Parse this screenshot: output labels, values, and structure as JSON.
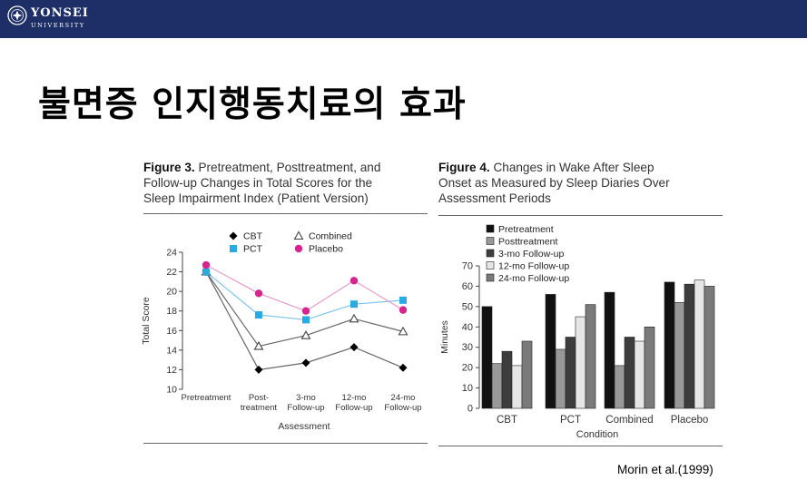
{
  "header": {
    "logo_name": "YONSEI",
    "logo_sub": "UNIVERSITY",
    "colors": {
      "bar": "#1d2f66",
      "text": "#ffffff"
    }
  },
  "slide_title": "불면증 인지행동치료의 효과",
  "citation": "Morin et al.(1999)",
  "figure3": {
    "label": "Figure 3.",
    "caption_lines": [
      "Pretreatment, Posttreatment, and",
      "Follow-up Changes in Total Scores for the",
      "Sleep Impairment Index (Patient Version)"
    ]
  },
  "figure4": {
    "label": "Figure 4.",
    "caption_lines": [
      "Changes in Wake After Sleep",
      "Onset as Measured by Sleep Diaries Over",
      "Assessment Periods"
    ]
  },
  "chart_data": [
    {
      "type": "line",
      "xlabel": "Assessment",
      "ylabel": "Total Score",
      "categories": [
        [
          "Pretreatment"
        ],
        [
          "Post-",
          "treatment"
        ],
        [
          "3-mo",
          "Follow-up"
        ],
        [
          "12-mo",
          "Follow-up"
        ],
        [
          "24-mo",
          "Follow-up"
        ]
      ],
      "ylim": [
        10,
        24
      ],
      "yticks": [
        10,
        12,
        14,
        16,
        18,
        20,
        22,
        24
      ],
      "legend_placement": "top",
      "series": [
        {
          "name": "CBT",
          "marker": "diamond",
          "color": "#666666",
          "marker_color": "#000000",
          "values": [
            22,
            12,
            12.7,
            14.3,
            12.2
          ]
        },
        {
          "name": "Combined",
          "marker": "triangle-open",
          "color": "#666666",
          "marker_color": "#444444",
          "values": [
            22,
            14.4,
            15.5,
            17.2,
            15.9
          ]
        },
        {
          "name": "PCT",
          "marker": "square",
          "color": "#7fc4e8",
          "marker_color": "#29abe2",
          "values": [
            22,
            17.6,
            17.1,
            18.7,
            19.1
          ]
        },
        {
          "name": "Placebo",
          "marker": "circle",
          "color": "#e59acb",
          "marker_color": "#d6268e",
          "values": [
            22.7,
            19.8,
            18,
            21.1,
            18.1
          ]
        }
      ]
    },
    {
      "type": "bar",
      "xlabel": "Condition",
      "ylabel": "Minutes",
      "categories": [
        "CBT",
        "PCT",
        "Combined",
        "Placebo"
      ],
      "ylim": [
        0,
        70
      ],
      "yticks": [
        0,
        10,
        20,
        30,
        40,
        50,
        60,
        70
      ],
      "legend_placement": "top-left",
      "series": [
        {
          "name": "Pretreatment",
          "color": "#111111",
          "values": [
            50,
            56,
            57,
            62
          ]
        },
        {
          "name": "Posttreatment",
          "color": "#999999",
          "values": [
            22,
            29,
            21,
            52
          ]
        },
        {
          "name": "3-mo Follow-up",
          "color": "#3d3d3d",
          "values": [
            28,
            35,
            35,
            61
          ]
        },
        {
          "name": "12-mo Follow-up",
          "color": "#e6e6e6",
          "values": [
            21,
            45,
            33,
            63
          ]
        },
        {
          "name": "24-mo Follow-up",
          "color": "#7a7a7a",
          "values": [
            33,
            51,
            40,
            60
          ]
        }
      ]
    }
  ]
}
